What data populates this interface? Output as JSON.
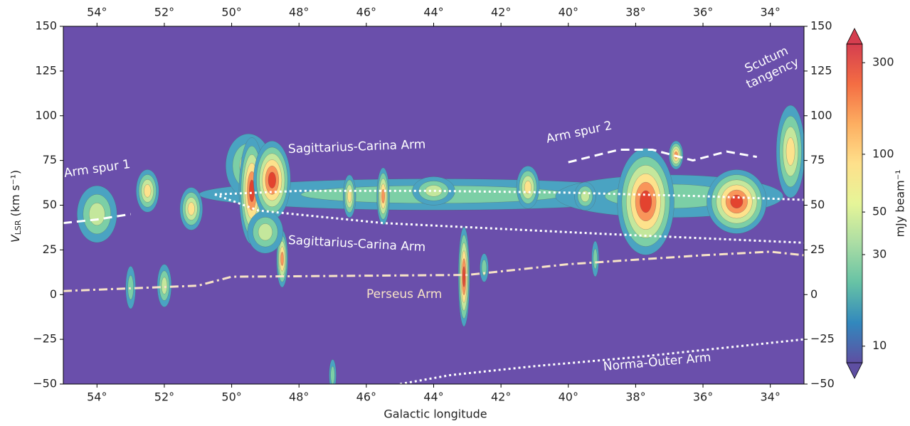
{
  "chart_data": {
    "type": "line",
    "xlabel": "Galactic longitude",
    "ylabel": {
      "symbol": "V",
      "subscript": "LSR",
      "unit": "(km s⁻¹)"
    },
    "xlim": [
      55,
      33
    ],
    "ylim": [
      -50,
      150
    ],
    "xticks": [
      {
        "value": 54,
        "label": "54°"
      },
      {
        "value": 52,
        "label": "52°"
      },
      {
        "value": 50,
        "label": "50°"
      },
      {
        "value": 48,
        "label": "48°"
      },
      {
        "value": 46,
        "label": "46°"
      },
      {
        "value": 44,
        "label": "44°"
      },
      {
        "value": 42,
        "label": "42°"
      },
      {
        "value": 40,
        "label": "40°"
      },
      {
        "value": 38,
        "label": "38°"
      },
      {
        "value": 36,
        "label": "36°"
      },
      {
        "value": 34,
        "label": "34°"
      }
    ],
    "yticks": [
      {
        "value": -50,
        "label": "−50"
      },
      {
        "value": -25,
        "label": "−25"
      },
      0,
      25,
      50,
      75,
      100,
      125,
      150
    ],
    "background": "#6a4fab",
    "series": [
      {
        "color": "#ffffff",
        "dash": "dashed",
        "x": [
          55,
          54,
          53
        ],
        "values": [
          40,
          42,
          45
        ]
      },
      {
        "color": "#ffffff",
        "dash": "dotted",
        "x": [
          50.5,
          48,
          44,
          40,
          36,
          33
        ],
        "values": [
          56,
          58,
          58,
          57,
          55,
          53
        ]
      },
      {
        "color": "#ffffff",
        "dash": "dotted",
        "x": [
          50.5,
          49.2,
          45.5,
          39,
          33
        ],
        "values": [
          56,
          47,
          40,
          34,
          29
        ]
      },
      {
        "color": "#f7e3c6",
        "dash": "dashdot",
        "x": [
          55,
          51,
          50,
          43,
          40,
          36,
          34,
          33
        ],
        "values": [
          2,
          5,
          10,
          11,
          17,
          22,
          24,
          22
        ]
      },
      {
        "color": "#ffffff",
        "dash": "dashed",
        "x": [
          40,
          38.5,
          37.5,
          36.3,
          35.3,
          34.4
        ],
        "values": [
          74,
          81,
          81,
          75,
          80,
          77
        ]
      },
      {
        "color": "#ffffff",
        "dash": "dotted",
        "x": [
          45,
          43.5,
          41,
          38,
          36,
          34,
          33
        ],
        "values": [
          -50,
          -45,
          -40,
          -35,
          -31,
          -27,
          -25
        ]
      }
    ],
    "annotations": [
      "Arm spur 1",
      "Sagittarius-Carina Arm",
      "Sagittarius-Carina Arm",
      "Perseus Arm",
      "Arm spur 2",
      "Scutum",
      "tangency",
      "Norma-Outer Arm"
    ],
    "colorbar": {
      "label": "mJy beam⁻¹",
      "log": true,
      "clim": [
        8.2,
        375
      ],
      "ticks": [
        10,
        30,
        50,
        100,
        300
      ],
      "colormap": [
        "#5e4fa2",
        "#3288bd",
        "#66c2a5",
        "#abdda4",
        "#e6f598",
        "#fee08b",
        "#fdae61",
        "#f46d43",
        "#d53e4f"
      ]
    }
  }
}
